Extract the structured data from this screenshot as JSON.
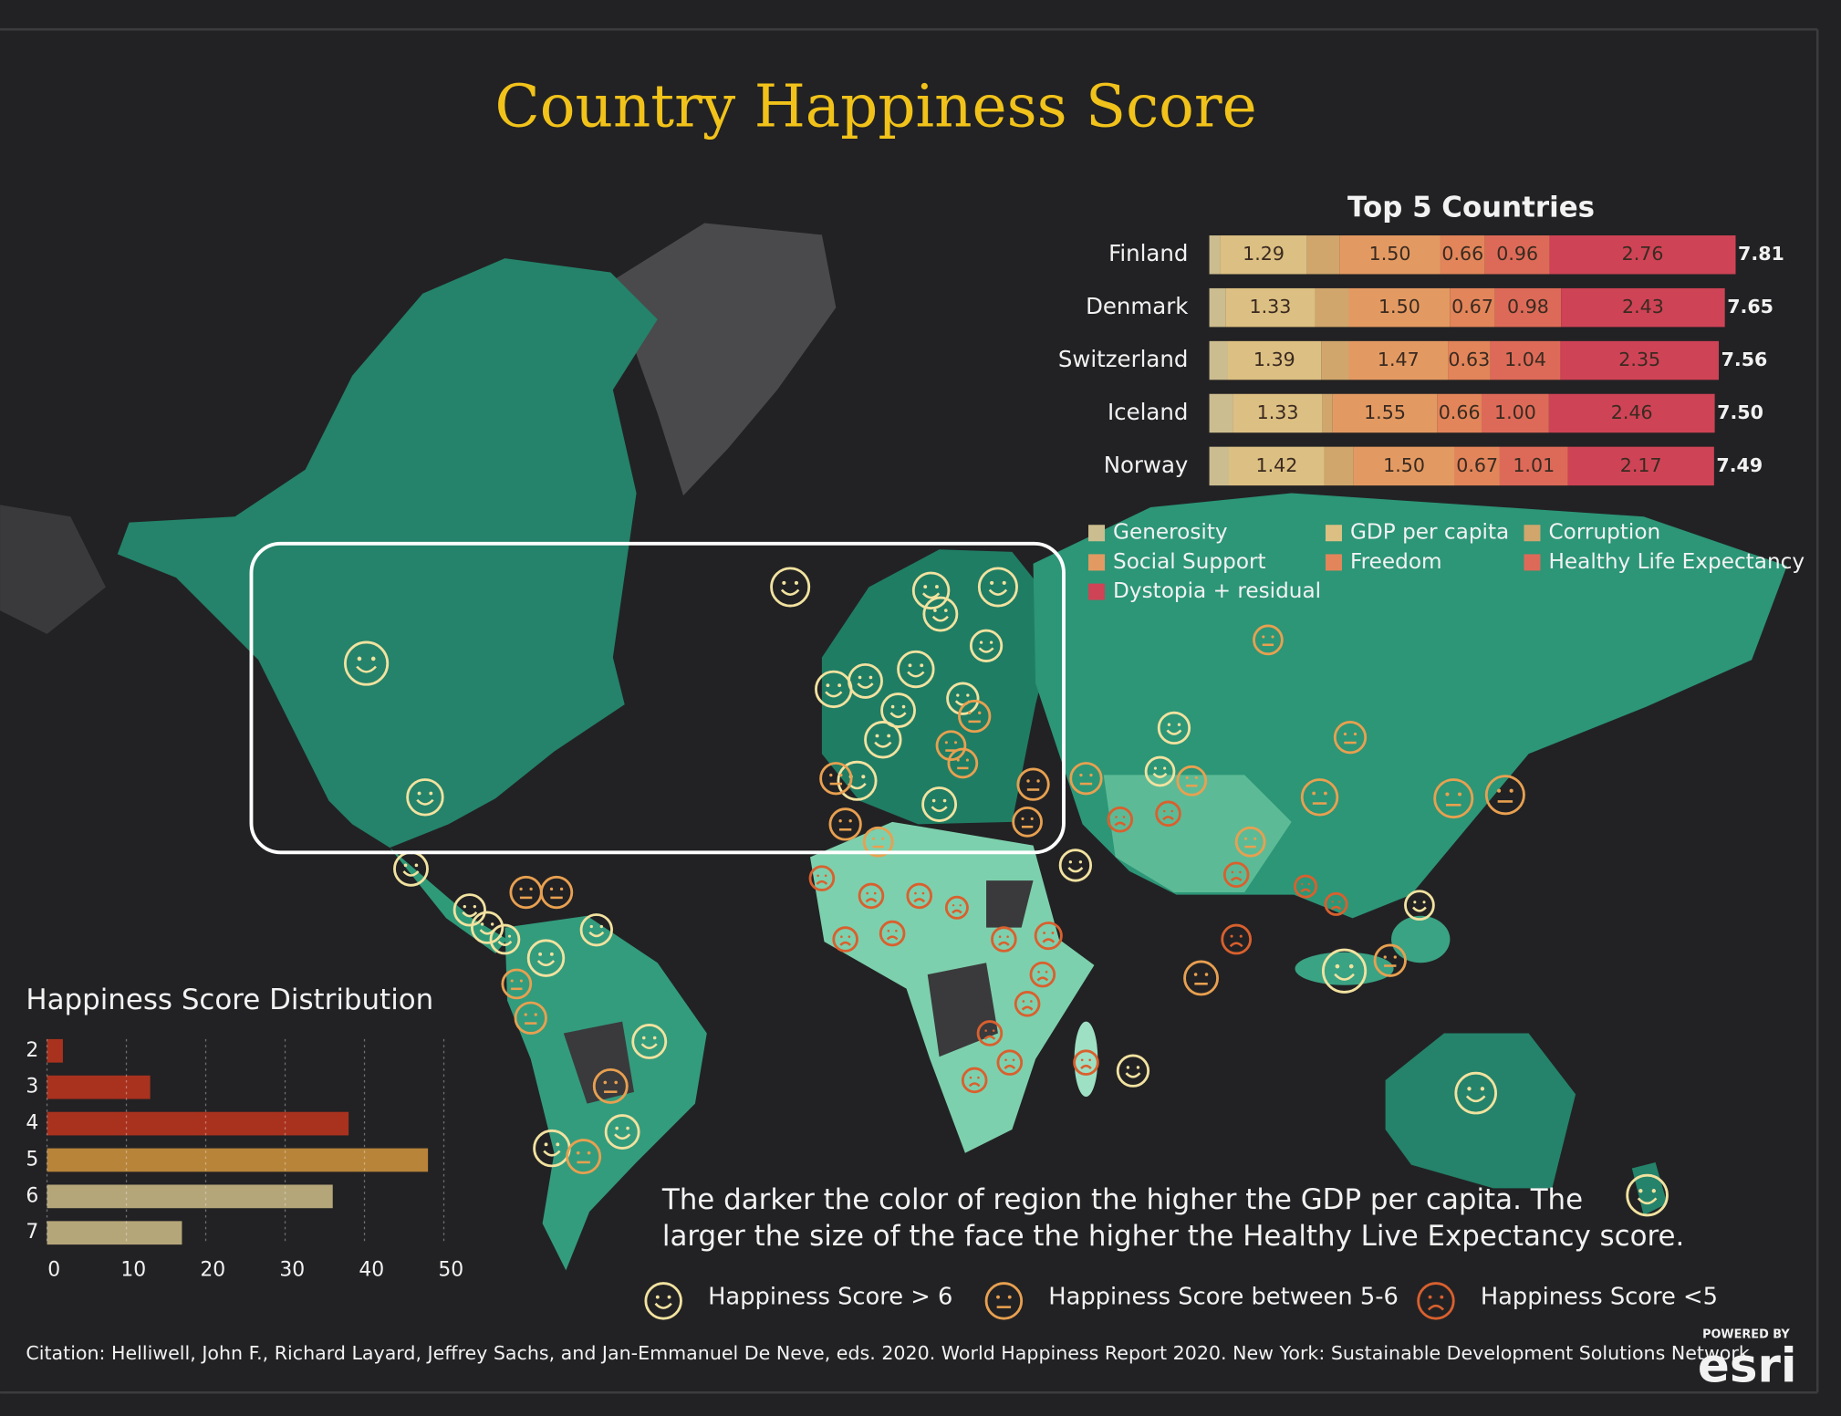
{
  "title": "Country Happiness Score",
  "chart_data": [
    {
      "type": "bar",
      "orientation": "horizontal",
      "stacked": true,
      "title": "Top 5 Countries",
      "categories": [
        "Finland",
        "Denmark",
        "Switzerland",
        "Iceland",
        "Norway"
      ],
      "series": [
        {
          "name": "Generosity",
          "color": "#cbbd8f",
          "values": [
            0.16,
            0.24,
            0.27,
            0.35,
            0.29
          ]
        },
        {
          "name": "GDP per capita",
          "color": "#dcbf82",
          "values": [
            1.29,
            1.33,
            1.39,
            1.33,
            1.42
          ],
          "value_labels": [
            "1.29",
            "1.33",
            "1.39",
            "1.33",
            "1.42"
          ]
        },
        {
          "name": "Corruption",
          "color": "#d0a66d",
          "values": [
            0.48,
            0.5,
            0.41,
            0.15,
            0.43
          ]
        },
        {
          "name": "Social Support",
          "color": "#e39a62",
          "values": [
            1.5,
            1.5,
            1.47,
            1.55,
            1.5
          ],
          "value_labels": [
            "1.50",
            "1.50",
            "1.47",
            "1.55",
            "1.50"
          ]
        },
        {
          "name": "Freedom",
          "color": "#e2855a",
          "values": [
            0.66,
            0.67,
            0.63,
            0.66,
            0.67
          ],
          "value_labels": [
            "0.66",
            "0.67",
            "0.63",
            "0.66",
            "0.67"
          ]
        },
        {
          "name": "Healthy Life Expectancy",
          "color": "#dd6a58",
          "values": [
            0.96,
            0.98,
            1.04,
            1.0,
            1.01
          ],
          "value_labels": [
            "0.96",
            "0.98",
            "1.04",
            "1.00",
            "1.01"
          ]
        },
        {
          "name": "Dystopia + residual",
          "color": "#cf4356",
          "values": [
            2.76,
            2.43,
            2.35,
            2.46,
            2.17
          ],
          "value_labels": [
            "2.76",
            "2.43",
            "2.35",
            "2.46",
            "2.17"
          ]
        }
      ],
      "totals": [
        7.81,
        7.65,
        7.56,
        {
          "value": 7.5,
          "label": "7.50"
        },
        7.49
      ]
    },
    {
      "type": "bar",
      "orientation": "horizontal",
      "title": "Happiness Score Distribution",
      "categories": [
        "2",
        "3",
        "4",
        "5",
        "6",
        "7"
      ],
      "values": [
        2,
        13,
        38,
        48,
        36,
        17
      ],
      "colors": [
        "#a9321f",
        "#a9321f",
        "#a9321f",
        "#b8843a",
        "#b5a67a",
        "#b5a67a"
      ],
      "xlim": [
        0,
        50
      ],
      "xticks": [
        0,
        10,
        20,
        30,
        40,
        50
      ],
      "grid": true
    }
  ],
  "note": [
    "The darker the color of region the higher the GDP per capita. The",
    "larger the size of the face the higher the Healthy Live Expectancy score."
  ],
  "legend": [
    {
      "label": "Happiness Score > 6",
      "color": "#f2e2a0"
    },
    {
      "label": "Happiness Score between 5-6",
      "color": "#e8a050"
    },
    {
      "label": "Happiness Score <5",
      "color": "#d9602e"
    }
  ],
  "citation": "Citation: Helliwell, John F., Richard Layard, Jeffrey Sachs, and Jan-Emmanuel De Neve, eds. 2020. World Happiness Report 2020. New York: Sustainable Development Solutions Network",
  "credit": {
    "powered_by": "POWERED BY",
    "brand": "esri"
  }
}
